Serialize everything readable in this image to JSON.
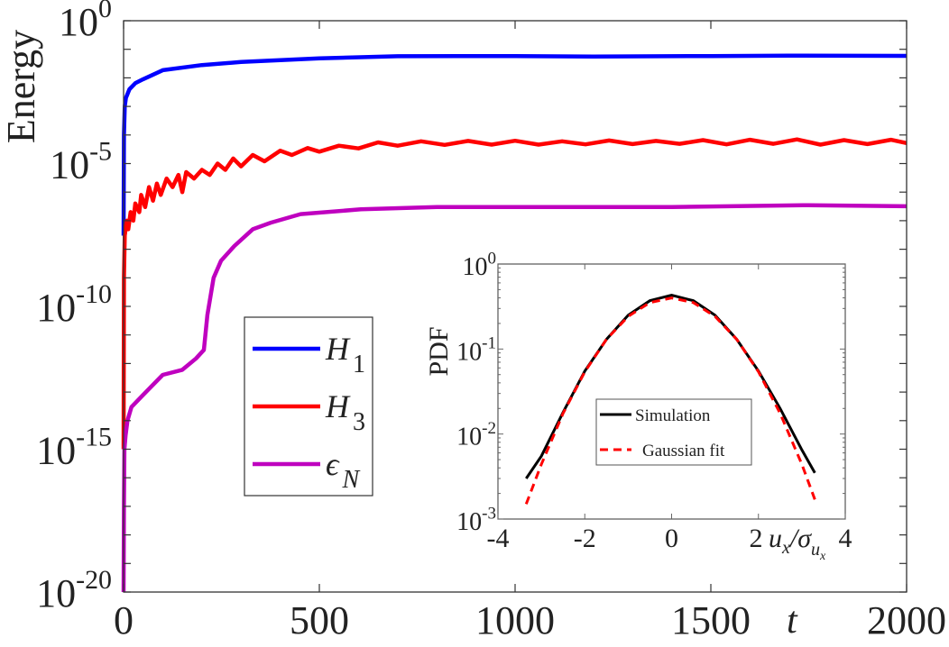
{
  "chart_data": [
    {
      "type": "line",
      "ylabel": "Energy",
      "xlabel": "t",
      "xlim": [
        0,
        2000
      ],
      "ylim": [
        1e-20,
        1
      ],
      "yscale": "log",
      "xticks": [
        0,
        500,
        1000,
        1500,
        2000
      ],
      "yticks": [
        {
          "base": "10",
          "exp": "0",
          "value": 1
        },
        {
          "base": "10",
          "exp": "-5",
          "value": 1e-05
        },
        {
          "base": "10",
          "exp": "-10",
          "value": 1e-10
        },
        {
          "base": "10",
          "exp": "-15",
          "value": 1e-15
        },
        {
          "base": "10",
          "exp": "-20",
          "value": 1e-20
        }
      ],
      "grid": false,
      "legend_position": "center-left",
      "series": [
        {
          "name": "H1",
          "label_main": "H",
          "label_sub": "1",
          "color": "#0000ff",
          "points": [
            [
              0,
              3e-08
            ],
            [
              1,
              0.0001
            ],
            [
              3,
              0.001
            ],
            [
              6,
              0.002
            ],
            [
              15,
              0.004
            ],
            [
              30,
              0.0065
            ],
            [
              50,
              0.009
            ],
            [
              100,
              0.0186
            ],
            [
              200,
              0.028
            ],
            [
              300,
              0.036
            ],
            [
              500,
              0.048
            ],
            [
              700,
              0.057
            ],
            [
              1000,
              0.058
            ],
            [
              1200,
              0.056
            ],
            [
              1500,
              0.058
            ],
            [
              1700,
              0.06
            ],
            [
              2000,
              0.059
            ]
          ]
        },
        {
          "name": "H3",
          "label_main": "H",
          "label_sub": "3",
          "color": "#ff0000",
          "points": [
            [
              0,
              1e-15
            ],
            [
              1,
              1e-09
            ],
            [
              3,
              3e-08
            ],
            [
              8,
              1e-07
            ],
            [
              12,
              5e-08
            ],
            [
              18,
              2e-07
            ],
            [
              25,
              1e-07
            ],
            [
              30,
              4e-07
            ],
            [
              40,
              2e-07
            ],
            [
              45,
              8e-07
            ],
            [
              55,
              3e-07
            ],
            [
              65,
              1.5e-06
            ],
            [
              75,
              5e-07
            ],
            [
              85,
              2e-06
            ],
            [
              95,
              8e-07
            ],
            [
              110,
              3e-06
            ],
            [
              125,
              1.5e-06
            ],
            [
              140,
              4e-06
            ],
            [
              150,
              1e-06
            ],
            [
              160,
              5e-06
            ],
            [
              180,
              3e-06
            ],
            [
              200,
              6e-06
            ],
            [
              220,
              4e-06
            ],
            [
              240,
              1e-05
            ],
            [
              260,
              6e-06
            ],
            [
              280,
              1.5e-05
            ],
            [
              300,
              8e-06
            ],
            [
              330,
              2e-05
            ],
            [
              360,
              1.2e-05
            ],
            [
              400,
              2.8e-05
            ],
            [
              430,
              2e-05
            ],
            [
              470,
              3.5e-05
            ],
            [
              500,
              2.6e-05
            ],
            [
              550,
              4.2e-05
            ],
            [
              600,
              3.4e-05
            ],
            [
              650,
              5.5e-05
            ],
            [
              700,
              4.2e-05
            ],
            [
              760,
              6e-05
            ],
            [
              820,
              4.5e-05
            ],
            [
              880,
              6.2e-05
            ],
            [
              940,
              4.6e-05
            ],
            [
              1000,
              6.3e-05
            ],
            [
              1060,
              4.6e-05
            ],
            [
              1120,
              6e-05
            ],
            [
              1180,
              4.7e-05
            ],
            [
              1240,
              6.4e-05
            ],
            [
              1300,
              4.8e-05
            ],
            [
              1360,
              6.2e-05
            ],
            [
              1420,
              4.9e-05
            ],
            [
              1480,
              6.6e-05
            ],
            [
              1540,
              4.7e-05
            ],
            [
              1600,
              6.8e-05
            ],
            [
              1660,
              4.9e-05
            ],
            [
              1720,
              7e-05
            ],
            [
              1780,
              4.6e-05
            ],
            [
              1840,
              6.6e-05
            ],
            [
              1900,
              4.8e-05
            ],
            [
              1960,
              6.8e-05
            ],
            [
              2000,
              5.2e-05
            ]
          ]
        },
        {
          "name": "εN",
          "label_main": "ϵ",
          "label_sub": "N",
          "color": "#bf00bf",
          "points": [
            [
              0,
              1e-20
            ],
            [
              1,
              1e-17
            ],
            [
              2,
              1e-15
            ],
            [
              5,
              3e-15
            ],
            [
              10,
              1e-14
            ],
            [
              20,
              3e-14
            ],
            [
              50,
              8e-14
            ],
            [
              100,
              4e-13
            ],
            [
              150,
              6e-13
            ],
            [
              185,
              1.5e-12
            ],
            [
              205,
              3e-12
            ],
            [
              214,
              5e-11
            ],
            [
              230,
              1e-09
            ],
            [
              249,
              4e-09
            ],
            [
              283,
              1.3e-08
            ],
            [
              330,
              5e-08
            ],
            [
              376,
              8.5e-08
            ],
            [
              452,
              1.7e-07
            ],
            [
              606,
              2.5e-07
            ],
            [
              800,
              3e-07
            ],
            [
              1000,
              3e-07
            ],
            [
              1400,
              3e-07
            ],
            [
              1750,
              3.5e-07
            ],
            [
              2000,
              3.2e-07
            ]
          ]
        }
      ]
    },
    {
      "type": "line",
      "ylabel": "PDF",
      "xlabel_main": "u",
      "xlabel_sub": "x",
      "xlabel_slash": "/σ",
      "xlabel_sub2": "u",
      "xlabel_sub3": "x",
      "xlim": [
        -4,
        4
      ],
      "ylim": [
        0.001,
        1
      ],
      "yscale": "log",
      "xticks": [
        "-4",
        "-2",
        "0",
        "2",
        "4"
      ],
      "yticks": [
        {
          "base": "10",
          "exp": "0",
          "value": 1
        },
        {
          "base": "10",
          "exp": "-1",
          "value": 0.1
        },
        {
          "base": "10",
          "exp": "-2",
          "value": 0.01
        },
        {
          "base": "10",
          "exp": "-3",
          "value": 0.001
        }
      ],
      "legend_position": "bottom-center",
      "series": [
        {
          "name": "Simulation",
          "color": "#000000",
          "style": "solid",
          "points": [
            [
              -3.35,
              0.003
            ],
            [
              -3,
              0.0055
            ],
            [
              -2.5,
              0.018
            ],
            [
              -2,
              0.055
            ],
            [
              -1.5,
              0.13
            ],
            [
              -1,
              0.25
            ],
            [
              -0.5,
              0.37
            ],
            [
              0,
              0.43
            ],
            [
              0.5,
              0.37
            ],
            [
              1,
              0.25
            ],
            [
              1.5,
              0.13
            ],
            [
              2,
              0.055
            ],
            [
              2.5,
              0.02
            ],
            [
              3,
              0.0065
            ],
            [
              3.3,
              0.0035
            ]
          ]
        },
        {
          "name": "Gaussian fit",
          "color": "#ff0000",
          "style": "dashed",
          "points": [
            [
              -3.35,
              0.0015
            ],
            [
              -3,
              0.0044
            ],
            [
              -2.5,
              0.0175
            ],
            [
              -2,
              0.054
            ],
            [
              -1.5,
              0.13
            ],
            [
              -1,
              0.242
            ],
            [
              -0.5,
              0.352
            ],
            [
              0,
              0.399
            ],
            [
              0.5,
              0.352
            ],
            [
              1,
              0.242
            ],
            [
              1.5,
              0.13
            ],
            [
              2,
              0.054
            ],
            [
              2.5,
              0.0175
            ],
            [
              3,
              0.0044
            ],
            [
              3.3,
              0.0017
            ]
          ]
        }
      ]
    }
  ]
}
